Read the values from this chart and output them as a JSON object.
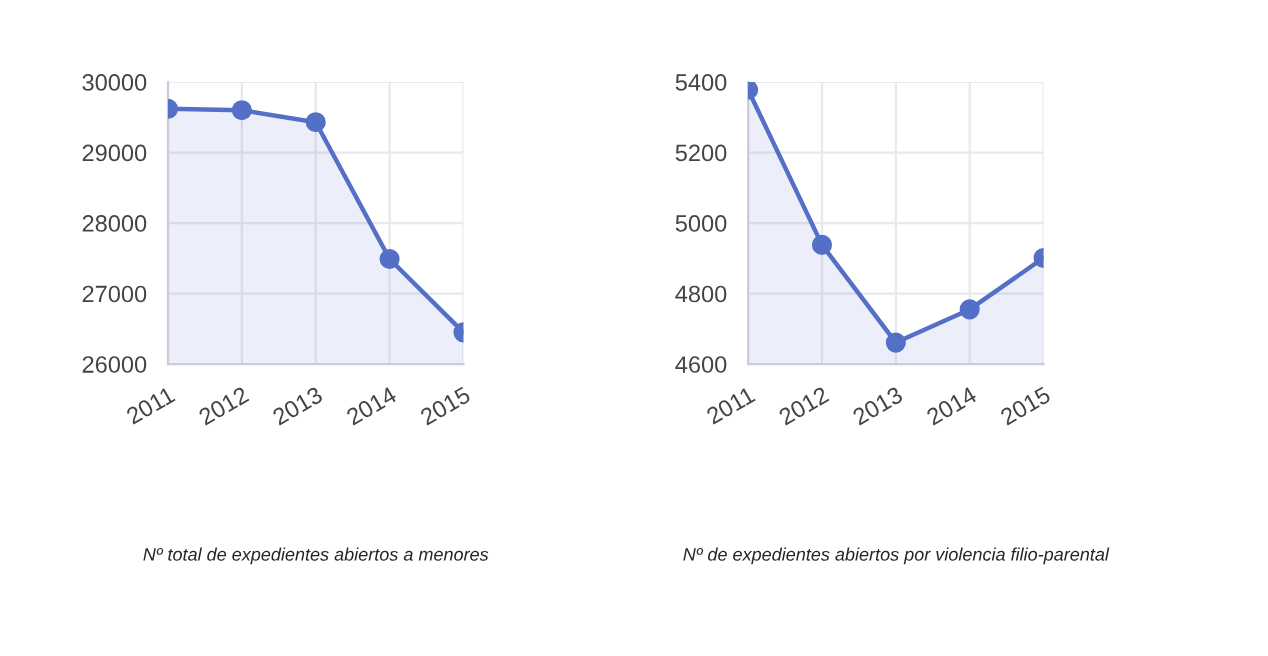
{
  "chart_data": [
    {
      "type": "area",
      "title": "Nº total de expedientes abiertos a menores",
      "categories": [
        "2011",
        "2012",
        "2013",
        "2014",
        "2015"
      ],
      "series": [
        {
          "color": "#5470c6",
          "values": [
            29620,
            29600,
            29430,
            27490,
            26450
          ]
        }
      ],
      "ylim": [
        26000,
        30000
      ],
      "yticks": [
        26000,
        27000,
        28000,
        29000,
        30000
      ],
      "grid": true,
      "marker": "circle",
      "line_style": "solid"
    },
    {
      "type": "area",
      "title": "Nº de expedientes abiertos por violencia filio-parental",
      "categories": [
        "2011",
        "2012",
        "2013",
        "2014",
        "2015"
      ],
      "series": [
        {
          "color": "#5470c6",
          "values": [
            5378,
            4938,
            4661,
            4755,
            4901
          ]
        }
      ],
      "ylim": [
        4600,
        5400
      ],
      "yticks": [
        4600,
        4800,
        5000,
        5200,
        5400
      ],
      "grid": true,
      "marker": "circle",
      "line_style": "solid"
    }
  ]
}
